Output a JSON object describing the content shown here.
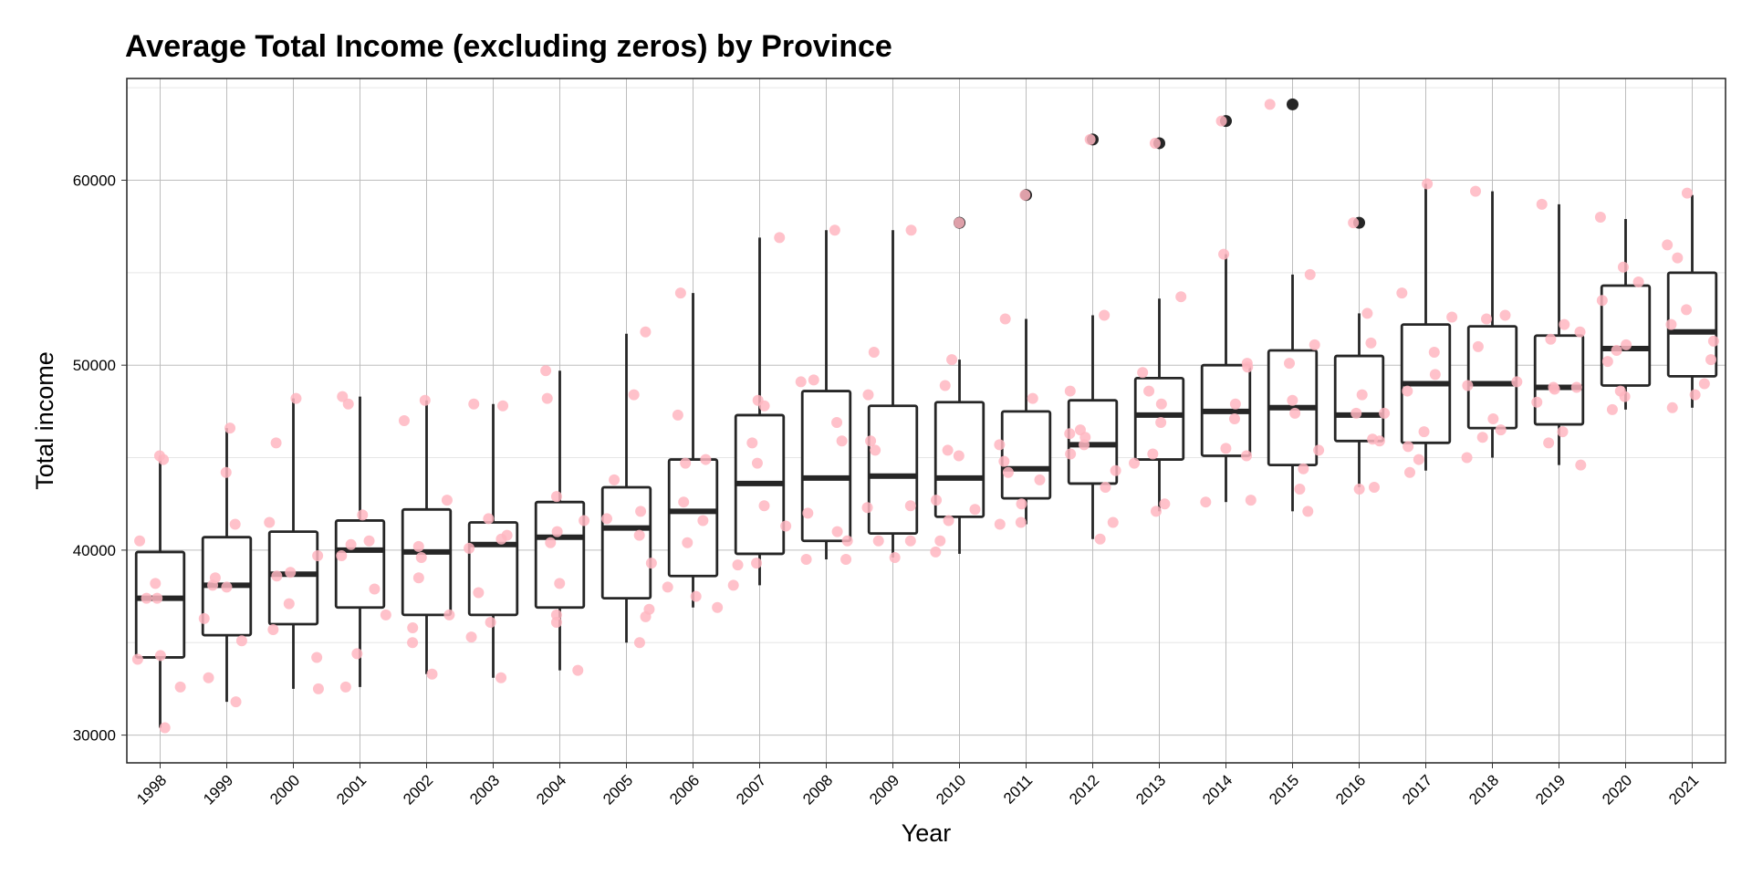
{
  "chart_data": {
    "type": "boxplot",
    "title": "Average Total Income (excluding zeros) by Province",
    "xlabel": "Year",
    "ylabel": "Total income",
    "ylim": [
      28500,
      65500
    ],
    "yticks": [
      30000,
      40000,
      50000,
      60000
    ],
    "grid": true,
    "point_color": "#ffb6c1",
    "box_color": "#262626",
    "categories": [
      "1998",
      "1999",
      "2000",
      "2001",
      "2002",
      "2003",
      "2004",
      "2005",
      "2006",
      "2007",
      "2008",
      "2009",
      "2010",
      "2011",
      "2012",
      "2013",
      "2014",
      "2015",
      "2016",
      "2017",
      "2018",
      "2019",
      "2020",
      "2021"
    ],
    "boxes": [
      {
        "year": "1998",
        "q1": 34200,
        "median": 37400,
        "q3": 39900,
        "lower": 30400,
        "upper": 45100,
        "outliers": []
      },
      {
        "year": "1999",
        "q1": 35400,
        "median": 38100,
        "q3": 40700,
        "lower": 31800,
        "upper": 46600,
        "outliers": []
      },
      {
        "year": "2000",
        "q1": 36000,
        "median": 38700,
        "q3": 41000,
        "lower": 32500,
        "upper": 48200,
        "outliers": []
      },
      {
        "year": "2001",
        "q1": 36900,
        "median": 40000,
        "q3": 41600,
        "lower": 32600,
        "upper": 48300,
        "outliers": []
      },
      {
        "year": "2002",
        "q1": 36500,
        "median": 39900,
        "q3": 42200,
        "lower": 33300,
        "upper": 48100,
        "outliers": []
      },
      {
        "year": "2003",
        "q1": 36500,
        "median": 40300,
        "q3": 41500,
        "lower": 33100,
        "upper": 47900,
        "outliers": []
      },
      {
        "year": "2004",
        "q1": 36900,
        "median": 40700,
        "q3": 42600,
        "lower": 33500,
        "upper": 49700,
        "outliers": []
      },
      {
        "year": "2005",
        "q1": 37400,
        "median": 41200,
        "q3": 43400,
        "lower": 35000,
        "upper": 51700,
        "outliers": []
      },
      {
        "year": "2006",
        "q1": 38600,
        "median": 42100,
        "q3": 44900,
        "lower": 36900,
        "upper": 53900,
        "outliers": []
      },
      {
        "year": "2007",
        "q1": 39800,
        "median": 43600,
        "q3": 47300,
        "lower": 38100,
        "upper": 56900,
        "outliers": []
      },
      {
        "year": "2008",
        "q1": 40500,
        "median": 43900,
        "q3": 48600,
        "lower": 39500,
        "upper": 57300,
        "outliers": []
      },
      {
        "year": "2009",
        "q1": 40900,
        "median": 44000,
        "q3": 47800,
        "lower": 39600,
        "upper": 57300,
        "outliers": []
      },
      {
        "year": "2010",
        "q1": 41800,
        "median": 43900,
        "q3": 48000,
        "lower": 39800,
        "upper": 50300,
        "outliers": [
          57700
        ]
      },
      {
        "year": "2011",
        "q1": 42800,
        "median": 44400,
        "q3": 47500,
        "lower": 41400,
        "upper": 52500,
        "outliers": [
          59200
        ]
      },
      {
        "year": "2012",
        "q1": 43600,
        "median": 45700,
        "q3": 48100,
        "lower": 40600,
        "upper": 52700,
        "outliers": [
          62200
        ]
      },
      {
        "year": "2013",
        "q1": 44900,
        "median": 47300,
        "q3": 49300,
        "lower": 42100,
        "upper": 53600,
        "outliers": [
          62000
        ]
      },
      {
        "year": "2014",
        "q1": 45100,
        "median": 47500,
        "q3": 50000,
        "lower": 42600,
        "upper": 56000,
        "outliers": [
          63200
        ]
      },
      {
        "year": "2015",
        "q1": 44600,
        "median": 47700,
        "q3": 50800,
        "lower": 42100,
        "upper": 54900,
        "outliers": [
          64100
        ]
      },
      {
        "year": "2016",
        "q1": 45900,
        "median": 47300,
        "q3": 50500,
        "lower": 43400,
        "upper": 52800,
        "outliers": [
          57700
        ]
      },
      {
        "year": "2017",
        "q1": 45800,
        "median": 49000,
        "q3": 52200,
        "lower": 44300,
        "upper": 59800,
        "outliers": []
      },
      {
        "year": "2018",
        "q1": 46600,
        "median": 49000,
        "q3": 52100,
        "lower": 45000,
        "upper": 59400,
        "outliers": []
      },
      {
        "year": "2019",
        "q1": 46800,
        "median": 48800,
        "q3": 51600,
        "lower": 44600,
        "upper": 58700,
        "outliers": []
      },
      {
        "year": "2020",
        "q1": 48900,
        "median": 50900,
        "q3": 54300,
        "lower": 47600,
        "upper": 57900,
        "outliers": []
      },
      {
        "year": "2021",
        "q1": 49400,
        "median": 51800,
        "q3": 55000,
        "lower": 47700,
        "upper": 59200,
        "outliers": []
      }
    ],
    "points": [
      {
        "year": "1998",
        "values": [
          45100,
          44900,
          40500,
          37400,
          37400,
          34300,
          34100,
          32600,
          30400,
          38200
        ]
      },
      {
        "year": "1999",
        "values": [
          38500,
          35100,
          41400,
          36300,
          38000,
          38100,
          31800,
          33100,
          46600,
          44200
        ]
      },
      {
        "year": "2000",
        "values": [
          45800,
          41500,
          34200,
          32500,
          35700,
          38800,
          39700,
          38600,
          37100,
          48200
        ]
      },
      {
        "year": "2001",
        "values": [
          40500,
          47900,
          48300,
          36500,
          34400,
          32600,
          41900,
          40300,
          39700,
          37900
        ]
      },
      {
        "year": "2002",
        "values": [
          38500,
          40200,
          47000,
          36500,
          35800,
          42700,
          48100,
          35000,
          33300,
          39600
        ]
      },
      {
        "year": "2003",
        "values": [
          40800,
          40600,
          47900,
          37700,
          36100,
          35300,
          40100,
          41700,
          47800,
          33100
        ]
      },
      {
        "year": "2004",
        "values": [
          41600,
          40400,
          36500,
          38200,
          36100,
          33500,
          41000,
          42900,
          48200,
          49700
        ]
      },
      {
        "year": "2005",
        "values": [
          40800,
          41700,
          43800,
          42100,
          51800,
          39300,
          36800,
          36400,
          35000,
          48400
        ]
      },
      {
        "year": "2006",
        "values": [
          37500,
          38000,
          42600,
          44700,
          47300,
          40400,
          41600,
          44900,
          53900,
          36900
        ]
      },
      {
        "year": "2007",
        "values": [
          38100,
          45800,
          42400,
          39300,
          39200,
          41300,
          44700,
          56900,
          47800,
          48100
        ]
      },
      {
        "year": "2008",
        "values": [
          39500,
          45900,
          40500,
          49200,
          49100,
          42000,
          41000,
          46900,
          57300,
          39500
        ]
      },
      {
        "year": "2009",
        "values": [
          40500,
          40500,
          45400,
          48400,
          45900,
          42300,
          39600,
          42400,
          57300,
          50700
        ]
      },
      {
        "year": "2010",
        "values": [
          57700,
          39900,
          45400,
          45100,
          42700,
          50300,
          48900,
          41600,
          42200,
          40500
        ]
      },
      {
        "year": "2011",
        "values": [
          44200,
          45700,
          48200,
          44800,
          41500,
          52500,
          59200,
          42500,
          41400,
          43800
        ]
      },
      {
        "year": "2012",
        "values": [
          62200,
          43400,
          45700,
          44300,
          52700,
          40600,
          46500,
          46100,
          48600,
          41500,
          45200,
          46300
        ]
      },
      {
        "year": "2013",
        "values": [
          49600,
          48600,
          44700,
          42500,
          42100,
          45200,
          47900,
          53700,
          46900,
          62000
        ]
      },
      {
        "year": "2014",
        "values": [
          42600,
          50100,
          47100,
          45500,
          49900,
          47900,
          56000,
          42700,
          45100,
          63200
        ]
      },
      {
        "year": "2015",
        "values": [
          48100,
          44400,
          42100,
          51100,
          47400,
          45400,
          43300,
          54900,
          50100,
          64100
        ]
      },
      {
        "year": "2016",
        "values": [
          47400,
          48400,
          52800,
          57700,
          46000,
          43400,
          43300,
          47400,
          45900,
          51200
        ]
      },
      {
        "year": "2017",
        "values": [
          53900,
          44900,
          46400,
          52600,
          50700,
          48600,
          49500,
          45600,
          44200,
          59800
        ]
      },
      {
        "year": "2018",
        "values": [
          46100,
          45000,
          49100,
          47100,
          48900,
          52500,
          59400,
          46500,
          51000,
          52700
        ]
      },
      {
        "year": "2019",
        "values": [
          45800,
          44600,
          52200,
          48800,
          48800,
          58700,
          51400,
          48700,
          51800,
          46400,
          48000
        ]
      },
      {
        "year": "2020",
        "values": [
          50200,
          48300,
          47600,
          48600,
          51100,
          50800,
          58000,
          53500,
          54500,
          55300
        ]
      },
      {
        "year": "2021",
        "values": [
          48400,
          51300,
          52200,
          59300,
          55800,
          53000,
          56500,
          47700,
          49000,
          50300
        ]
      }
    ]
  }
}
